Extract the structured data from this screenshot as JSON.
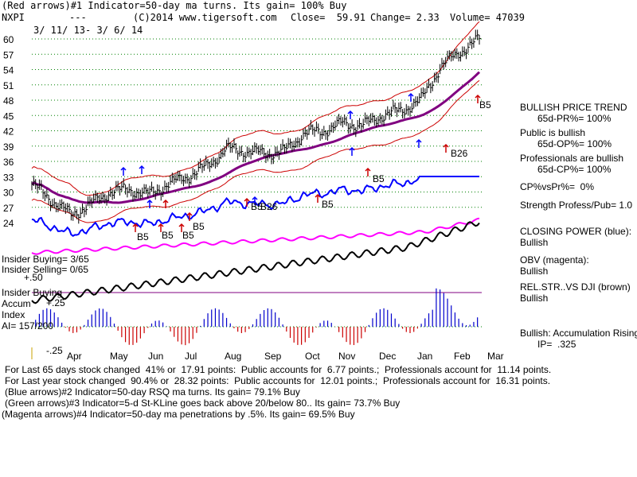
{
  "header": {
    "line1": "(Red arrows)#1 Indicator=50-day ma turns. Its gain= 100% Buy",
    "ticker": "NXPI",
    "dashes": "---",
    "source": "(C)2014 www.tigersoft.com",
    "close": "Close=  59.91",
    "change": "Change= 2.33",
    "volume": "Volume= 47039",
    "date_range": "3/ 11/ 13- 3/ 6/ 14"
  },
  "side_panel": {
    "trend_title": "BULLISH PRICE TREND",
    "pr": "65d-PR%= 100%",
    "public": "Public is bullish",
    "op": "65d-OP%= 100%",
    "pros": "Professionals are bullish",
    "cp": "65d-CP%= 100%",
    "cpvspr": "CP%vsPr%=  0%",
    "strength": "Strength Profess/Pub= 1.0",
    "closing_power": "CLOSING POWER (blue):",
    "closing_power_val": "Bullish",
    "obv": "OBV (magenta):",
    "obv_val": "Bullish",
    "relstr": "REL.STR..VS DJI (brown)",
    "relstr_val": "Bullish",
    "accum": "Bullish: Accumulation Rising",
    "ip": "IP=  .325"
  },
  "insider": {
    "buying": "Insider Buying= 3/65",
    "selling": "Insider Selling= 0/65",
    "buying2": "Insider Buying",
    "accum": "Accum",
    "index": "Index",
    "ai": "AI= 157/200",
    "plus50": "+.50",
    "plus25": "+.25",
    "minus25": "-.25"
  },
  "footer": {
    "line1": "For Last 65 days stock changed  41% or  17.91 points:  Public accounts for  6.77 points.;  Professionals account for  11.14 points.",
    "line2": "For Last year stock changed  90.4% or  28.32 points:  Public accounts for  12.01 points.;  Professionals account for  16.31 points.",
    "line3": "(Blue arrows)#2 Indicator=50-day RSQ ma turns. Its gain= 79.1% Buy",
    "line4": "(Green arrows)#3 Indicator=5-d St-KLine goes back above 20/below 80.. Its gain= 73.7% Buy",
    "line5": "(Magenta arrows)#4 Indicator=50-day ma penetrations by .5%. Its gain= 69.5% Buy"
  },
  "signals": [
    "B5",
    "B5",
    "B5",
    "B5",
    "B5",
    "B26",
    "B5",
    "B5",
    "B26",
    "B5"
  ],
  "colors": {
    "price": "#000000",
    "band": "#cc0000",
    "ma50": "#800080",
    "closing_power": "#0000ff",
    "obv": "#ff00ff",
    "relstr": "#000000",
    "accum_bars": "#0000cc",
    "grid": "#008000"
  },
  "chart_data": {
    "type": "line",
    "ticker": "NXPI",
    "x_months": [
      "Apr",
      "May",
      "Jun",
      "Jul",
      "Aug",
      "Sep",
      "Oct",
      "Nov",
      "Dec",
      "Jan",
      "Feb",
      "Mar"
    ],
    "yticks": [
      60,
      57,
      54,
      51,
      48,
      45,
      42,
      39,
      36,
      33,
      30,
      27,
      24
    ],
    "ylim": [
      22.5,
      61
    ],
    "series": [
      {
        "name": "Close",
        "points": [
          [
            "Mar",
            31.5
          ],
          [
            "Apr",
            28.5
          ],
          [
            "Apr",
            25.5
          ],
          [
            "May",
            27.5
          ],
          [
            "May",
            30.0
          ],
          [
            "Jun",
            30.5
          ],
          [
            "Jun",
            29.5
          ],
          [
            "Jul",
            31.5
          ],
          [
            "Jul",
            33.0
          ],
          [
            "Aug",
            35.0
          ],
          [
            "Aug",
            38.5
          ],
          [
            "Sep",
            38.0
          ],
          [
            "Sep",
            37.5
          ],
          [
            "Oct",
            38.0
          ],
          [
            "Oct",
            41.5
          ],
          [
            "Nov",
            42.0
          ],
          [
            "Nov",
            43.5
          ],
          [
            "Dec",
            43.0
          ],
          [
            "Dec",
            45.0
          ],
          [
            "Jan",
            46.0
          ],
          [
            "Jan",
            48.0
          ],
          [
            "Feb",
            54.5
          ],
          [
            "Feb",
            57.5
          ],
          [
            "Mar",
            59.91
          ]
        ]
      }
    ]
  }
}
